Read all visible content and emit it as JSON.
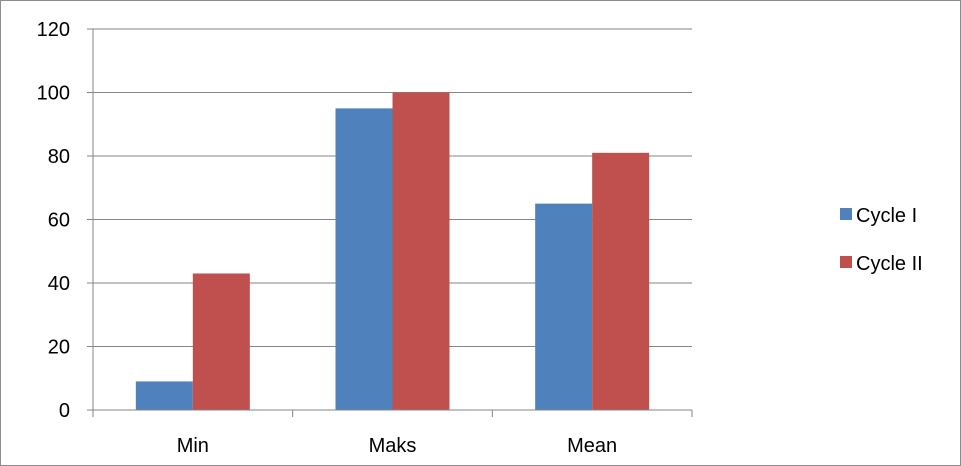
{
  "chart_data": {
    "type": "bar",
    "categories": [
      "Min",
      "Maks",
      "Mean"
    ],
    "series": [
      {
        "name": "Cycle I",
        "values": [
          9,
          95,
          65
        ],
        "color": "#4f81bd"
      },
      {
        "name": "Cycle II",
        "values": [
          43,
          100,
          81
        ],
        "color": "#c0504d"
      }
    ],
    "ylim": [
      0,
      120
    ],
    "yticks": [
      0,
      20,
      40,
      60,
      80,
      100,
      120
    ],
    "grid": true,
    "legend_position": "right"
  }
}
